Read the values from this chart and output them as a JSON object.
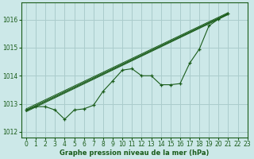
{
  "title": "Graphe pression niveau de la mer (hPa)",
  "bg_color": "#cce8e8",
  "grid_color": "#aacccc",
  "line_color": "#1a5c1a",
  "xlim": [
    -0.5,
    23
  ],
  "ylim": [
    1011.8,
    1016.6
  ],
  "yticks": [
    1012,
    1013,
    1014,
    1015,
    1016
  ],
  "xticks": [
    0,
    1,
    2,
    3,
    4,
    5,
    6,
    7,
    8,
    9,
    10,
    11,
    12,
    13,
    14,
    15,
    16,
    17,
    18,
    19,
    20,
    21,
    22,
    23
  ],
  "xlabel_fontsize": 6.0,
  "tick_fontsize": 5.5,
  "straight_lines": [
    {
      "x": [
        0,
        21
      ],
      "y": [
        1012.75,
        1016.2
      ]
    },
    {
      "x": [
        0,
        21
      ],
      "y": [
        1012.78,
        1016.22
      ]
    },
    {
      "x": [
        0,
        21
      ],
      "y": [
        1012.82,
        1016.25
      ]
    },
    {
      "x": [
        0,
        21
      ],
      "y": [
        1012.72,
        1016.18
      ]
    }
  ],
  "marker_line": {
    "x": [
      0,
      1,
      2,
      3,
      4,
      5,
      6,
      7,
      8,
      9,
      10,
      11,
      12,
      13,
      14,
      15,
      16,
      17,
      18,
      19,
      20,
      21
    ],
    "y": [
      1012.78,
      1012.9,
      1012.9,
      1012.78,
      1012.45,
      1012.78,
      1012.82,
      1012.95,
      1013.45,
      1013.82,
      1014.2,
      1014.25,
      1014.0,
      1014.0,
      1013.68,
      1013.68,
      1013.72,
      1014.45,
      1014.95,
      1015.78,
      1016.02,
      1016.22
    ]
  }
}
